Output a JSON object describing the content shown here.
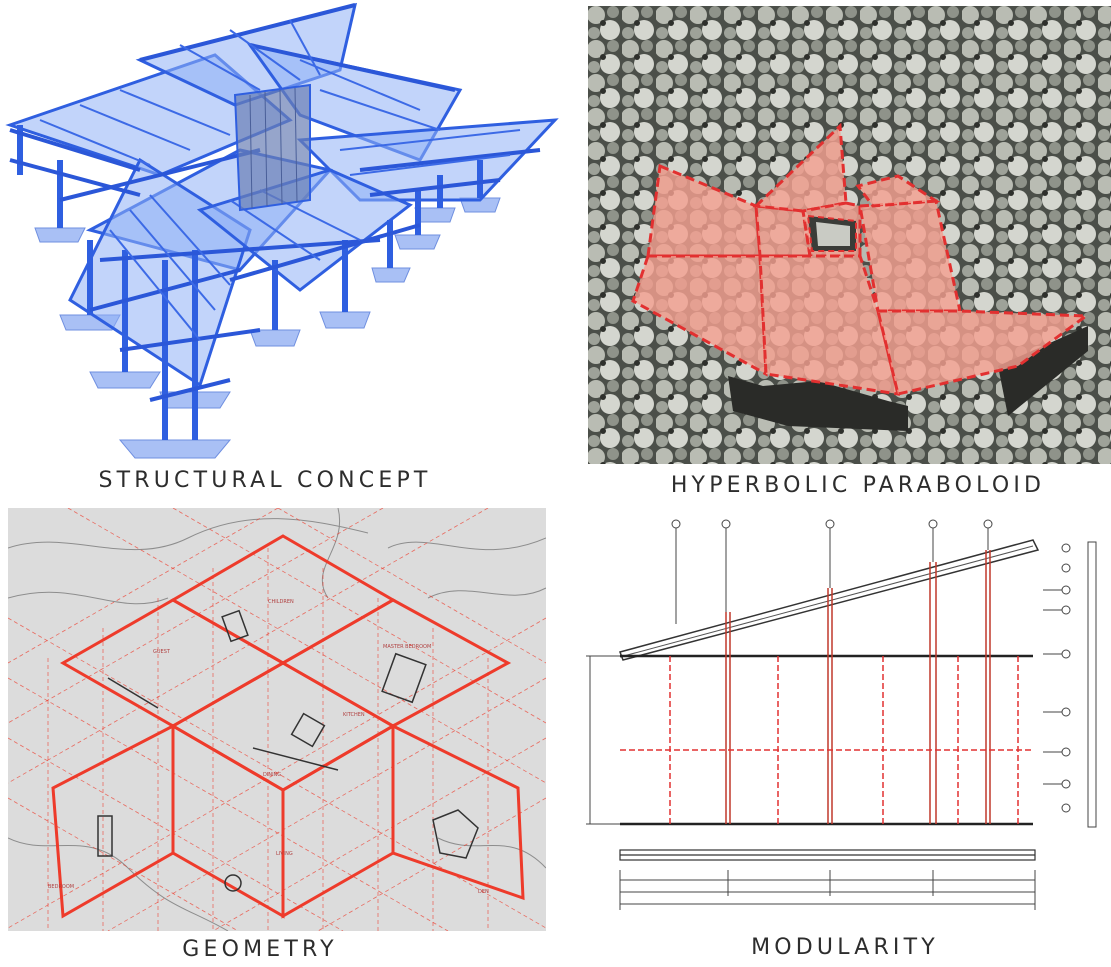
{
  "captions": {
    "structural": "STRUCTURAL CONCEPT",
    "hyperbolic": "HYPERBOLIC PARABOLOID",
    "geometry": "GEOMETRY",
    "modularity": "MODULARITY"
  },
  "colors": {
    "structure_blue": "#2f5fe0",
    "glass_blue": "#8fb0f5",
    "roof_overlay": "#f4a090",
    "dashed_red": "#e23030",
    "grid_red": "#ee3b2b"
  }
}
